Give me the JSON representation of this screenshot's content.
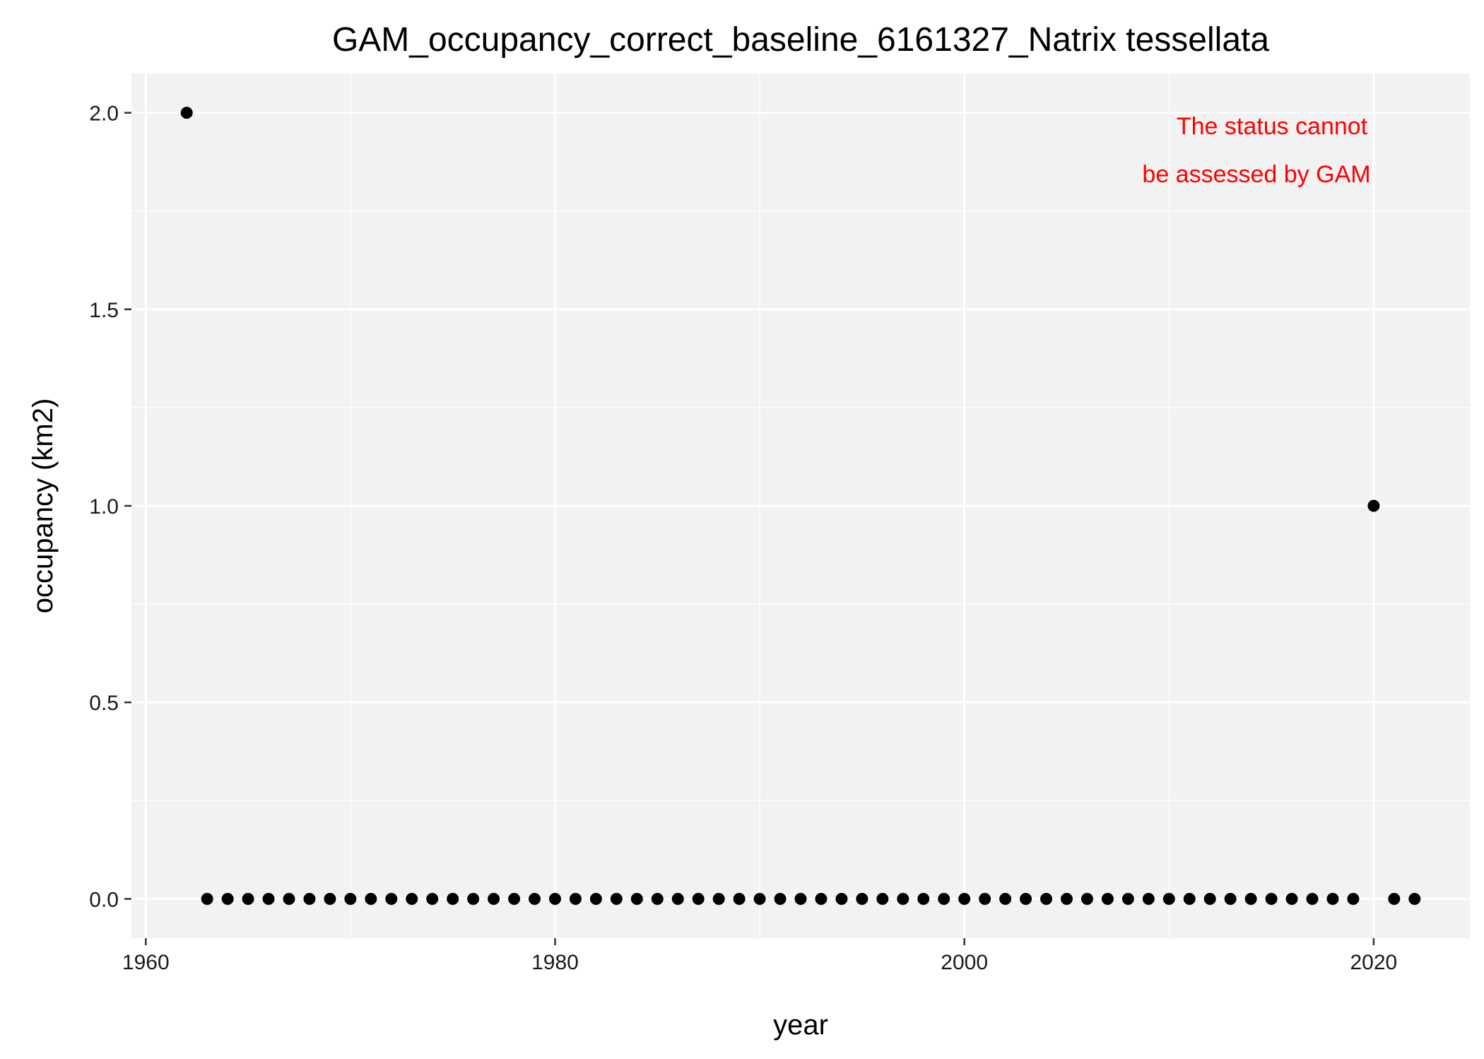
{
  "chart_data": {
    "type": "scatter",
    "title": "GAM_occupancy_correct_baseline_6161327_Natrix tessellata",
    "xlabel": "year",
    "ylabel": "occupancy (km2)",
    "xlim": [
      1959.3,
      2024.7
    ],
    "ylim": [
      -0.1,
      2.1
    ],
    "x_ticks": [
      1960,
      1980,
      2000,
      2020
    ],
    "x_tick_labels": [
      "1960",
      "1980",
      "2000",
      "2020"
    ],
    "y_ticks": [
      0.0,
      0.5,
      1.0,
      1.5,
      2.0
    ],
    "y_tick_labels": [
      "0.0",
      "0.5",
      "1.0",
      "1.5",
      "2.0"
    ],
    "grid": true,
    "annotation": {
      "lines": [
        "The status cannot",
        "be assessed by GAM"
      ],
      "color": "#ff0000",
      "position": "top-right"
    },
    "points": [
      {
        "x": 1962,
        "y": 2
      },
      {
        "x": 1963,
        "y": 0
      },
      {
        "x": 1964,
        "y": 0
      },
      {
        "x": 1965,
        "y": 0
      },
      {
        "x": 1966,
        "y": 0
      },
      {
        "x": 1967,
        "y": 0
      },
      {
        "x": 1968,
        "y": 0
      },
      {
        "x": 1969,
        "y": 0
      },
      {
        "x": 1970,
        "y": 0
      },
      {
        "x": 1971,
        "y": 0
      },
      {
        "x": 1972,
        "y": 0
      },
      {
        "x": 1973,
        "y": 0
      },
      {
        "x": 1974,
        "y": 0
      },
      {
        "x": 1975,
        "y": 0
      },
      {
        "x": 1976,
        "y": 0
      },
      {
        "x": 1977,
        "y": 0
      },
      {
        "x": 1978,
        "y": 0
      },
      {
        "x": 1979,
        "y": 0
      },
      {
        "x": 1980,
        "y": 0
      },
      {
        "x": 1981,
        "y": 0
      },
      {
        "x": 1982,
        "y": 0
      },
      {
        "x": 1983,
        "y": 0
      },
      {
        "x": 1984,
        "y": 0
      },
      {
        "x": 1985,
        "y": 0
      },
      {
        "x": 1986,
        "y": 0
      },
      {
        "x": 1987,
        "y": 0
      },
      {
        "x": 1988,
        "y": 0
      },
      {
        "x": 1989,
        "y": 0
      },
      {
        "x": 1990,
        "y": 0
      },
      {
        "x": 1991,
        "y": 0
      },
      {
        "x": 1992,
        "y": 0
      },
      {
        "x": 1993,
        "y": 0
      },
      {
        "x": 1994,
        "y": 0
      },
      {
        "x": 1995,
        "y": 0
      },
      {
        "x": 1996,
        "y": 0
      },
      {
        "x": 1997,
        "y": 0
      },
      {
        "x": 1998,
        "y": 0
      },
      {
        "x": 1999,
        "y": 0
      },
      {
        "x": 2000,
        "y": 0
      },
      {
        "x": 2001,
        "y": 0
      },
      {
        "x": 2002,
        "y": 0
      },
      {
        "x": 2003,
        "y": 0
      },
      {
        "x": 2004,
        "y": 0
      },
      {
        "x": 2005,
        "y": 0
      },
      {
        "x": 2006,
        "y": 0
      },
      {
        "x": 2007,
        "y": 0
      },
      {
        "x": 2008,
        "y": 0
      },
      {
        "x": 2009,
        "y": 0
      },
      {
        "x": 2010,
        "y": 0
      },
      {
        "x": 2011,
        "y": 0
      },
      {
        "x": 2012,
        "y": 0
      },
      {
        "x": 2013,
        "y": 0
      },
      {
        "x": 2014,
        "y": 0
      },
      {
        "x": 2015,
        "y": 0
      },
      {
        "x": 2016,
        "y": 0
      },
      {
        "x": 2017,
        "y": 0
      },
      {
        "x": 2018,
        "y": 0
      },
      {
        "x": 2019,
        "y": 0
      },
      {
        "x": 2020,
        "y": 1
      },
      {
        "x": 2021,
        "y": 0
      },
      {
        "x": 2022,
        "y": 0
      }
    ],
    "colors": {
      "panel_background": "#f2f2f2",
      "grid": "#ffffff",
      "point": "#000000",
      "tick": "#333333"
    }
  }
}
